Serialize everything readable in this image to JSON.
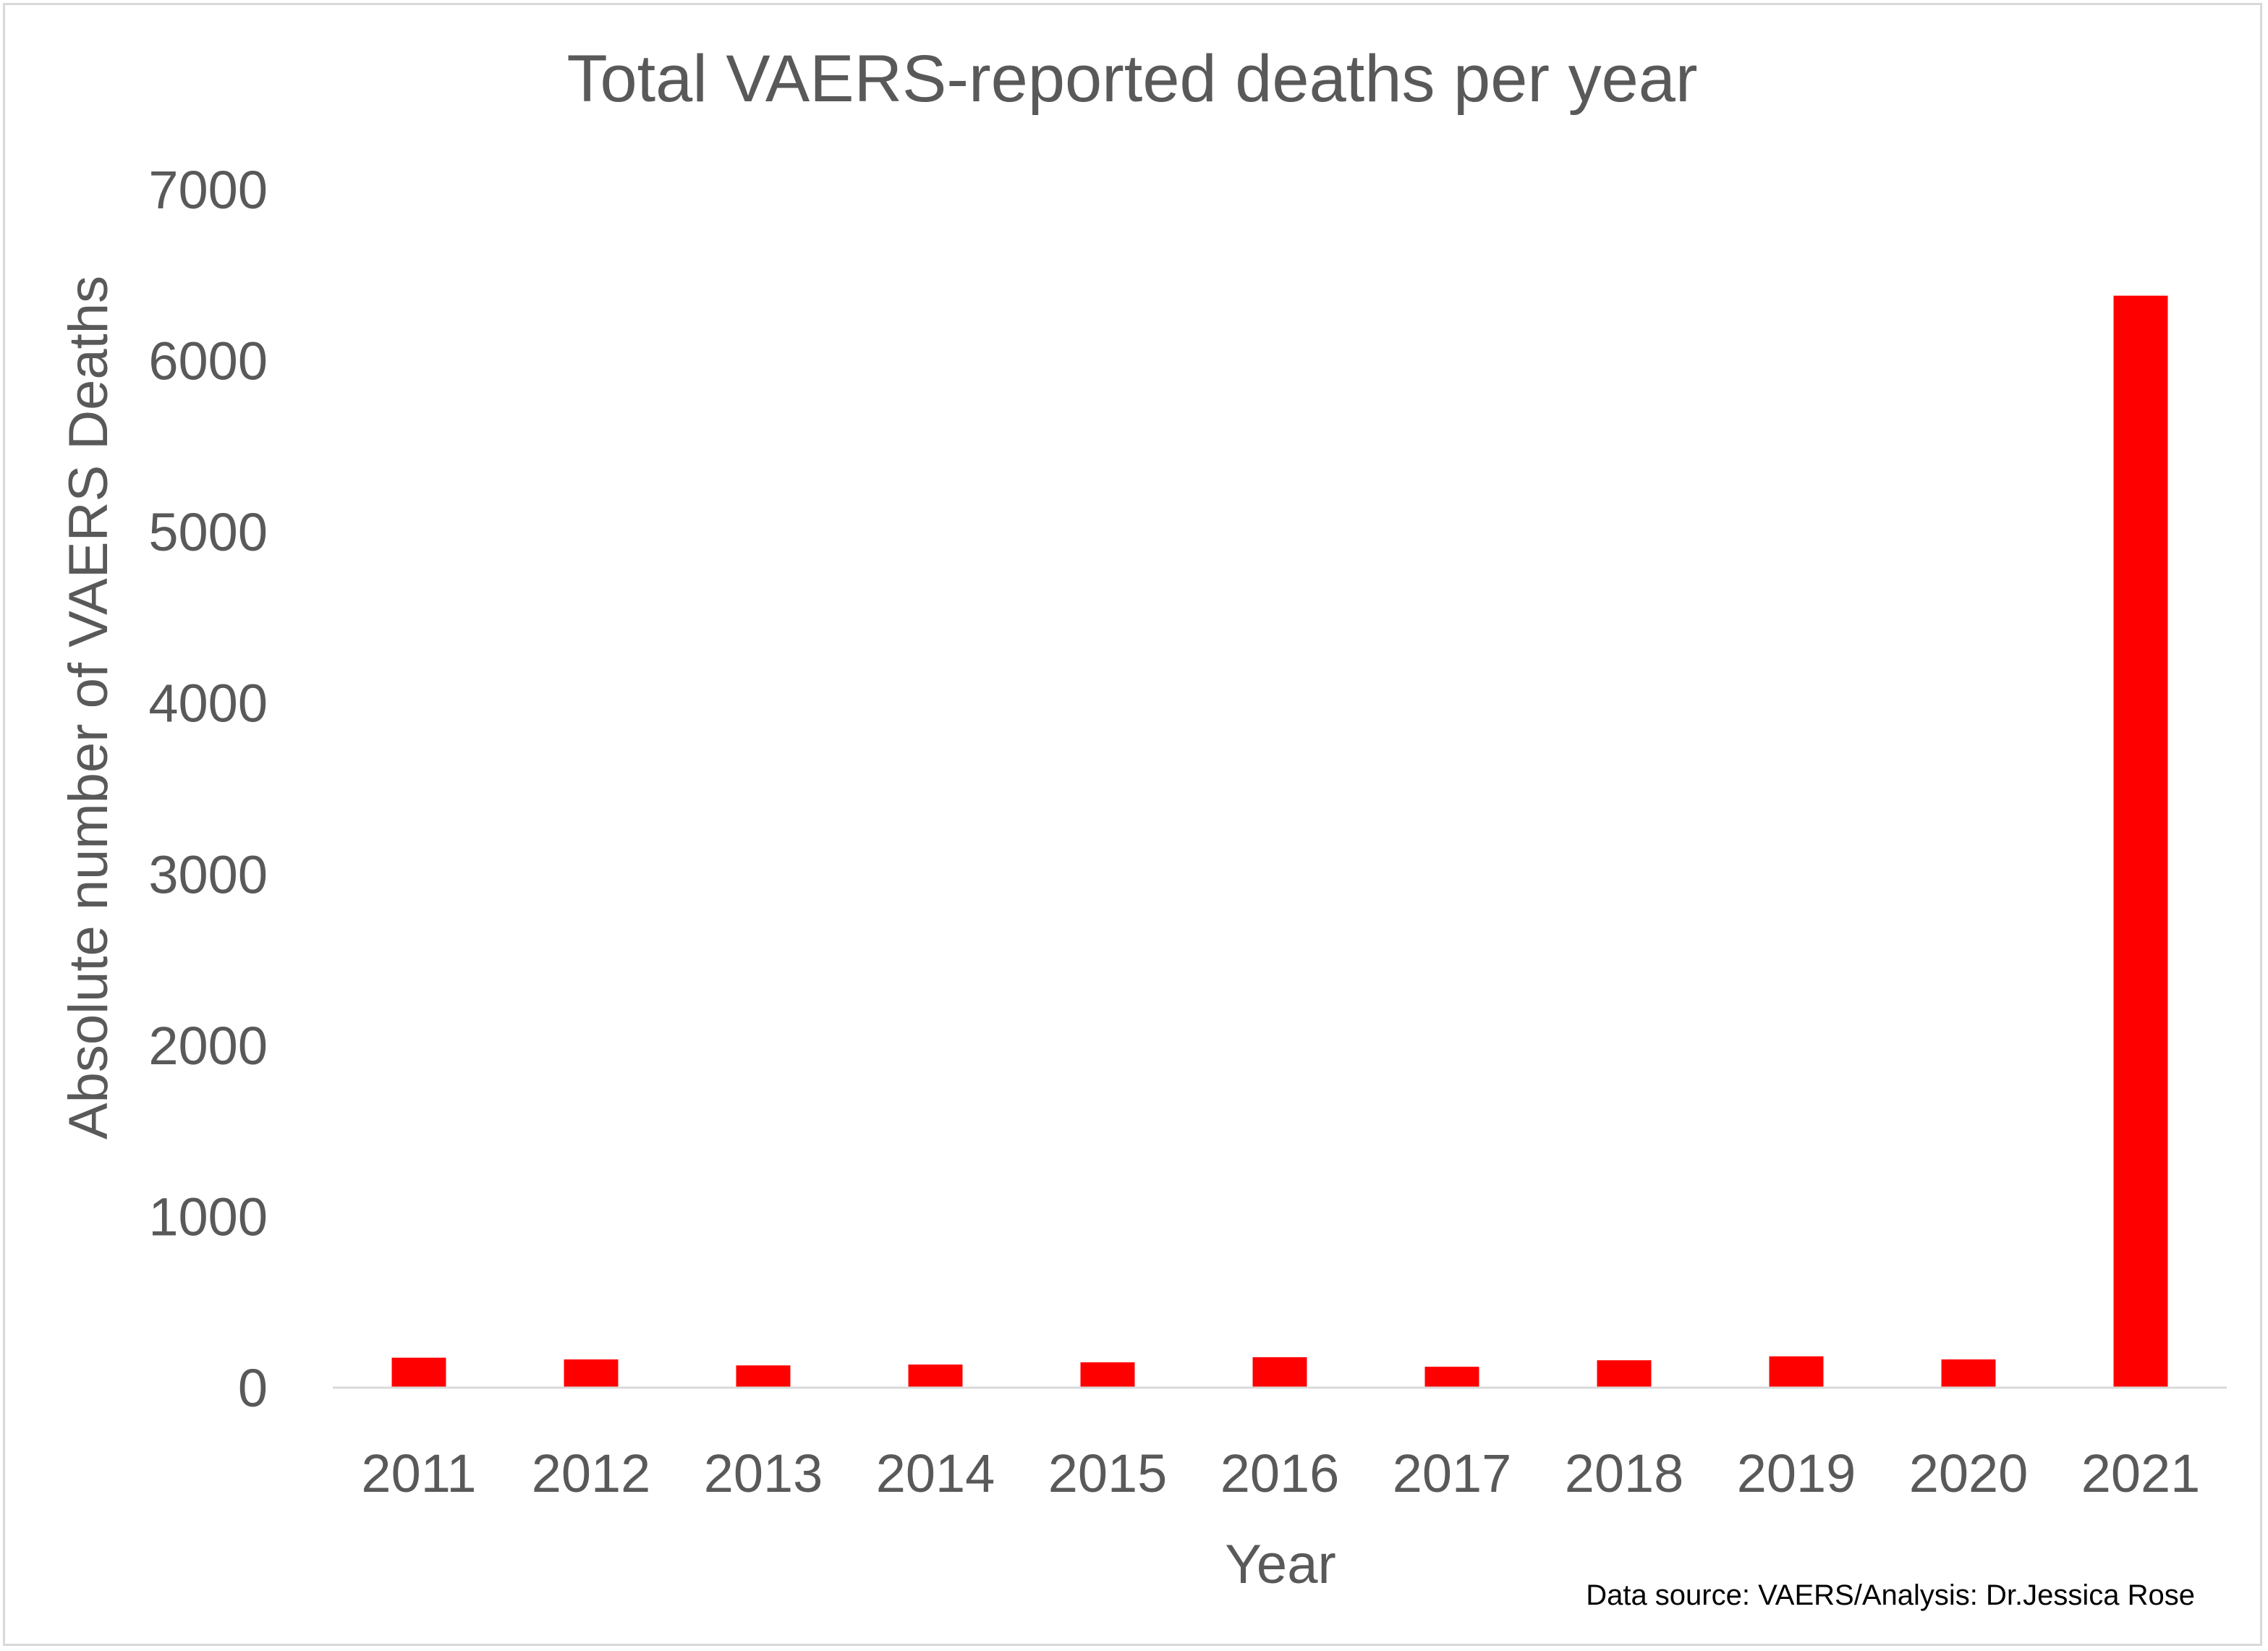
{
  "chart_data": {
    "type": "bar",
    "title": "Total VAERS-reported deaths per year",
    "xlabel": "Year",
    "ylabel": "Absolute number of VAERS Deaths",
    "categories": [
      "2011",
      "2012",
      "2013",
      "2014",
      "2015",
      "2016",
      "2017",
      "2018",
      "2019",
      "2020",
      "2021"
    ],
    "values": [
      175,
      165,
      130,
      135,
      148,
      178,
      122,
      160,
      183,
      165,
      6380
    ],
    "ylim": [
      0,
      7000
    ],
    "yticks": [
      0,
      1000,
      2000,
      3000,
      4000,
      5000,
      6000,
      7000
    ],
    "grid": false,
    "legend": "none",
    "bar_color": "#ff0000",
    "annotation": "Data source: VAERS/Analysis: Dr.Jessica Rose"
  }
}
